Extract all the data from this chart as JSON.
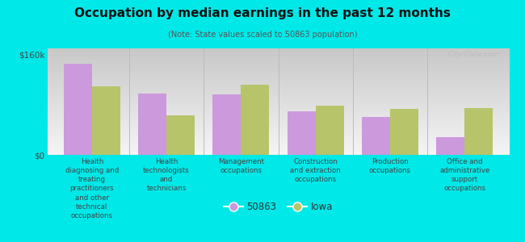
{
  "title": "Occupation by median earnings in the past 12 months",
  "subtitle": "(Note: State values scaled to 50863 population)",
  "background_color": "#00e8e8",
  "plot_bg_top": "#c8dba0",
  "plot_bg_bottom": "#f5fae8",
  "categories": [
    "Health\ndiagnosing and\ntreating\npractitioners\nand other\ntechnical\noccupations",
    "Health\ntechnologists\nand\ntechnicians",
    "Management\noccupations",
    "Construction\nand extraction\noccupations",
    "Production\noccupations",
    "Office and\nadministrative\nsupport\noccupations"
  ],
  "values_50863": [
    145000,
    98000,
    97000,
    70000,
    60000,
    28000
  ],
  "values_iowa": [
    110000,
    63000,
    112000,
    78000,
    73000,
    75000
  ],
  "color_50863": "#cc99dd",
  "color_iowa": "#b8c46a",
  "ylim": [
    0,
    170000
  ],
  "yticks": [
    0,
    160000
  ],
  "ytick_labels": [
    "$0",
    "$160k"
  ],
  "legend_label_50863": "50863",
  "legend_label_iowa": "Iowa",
  "watermark": "City-Data.com",
  "bar_width": 0.38
}
